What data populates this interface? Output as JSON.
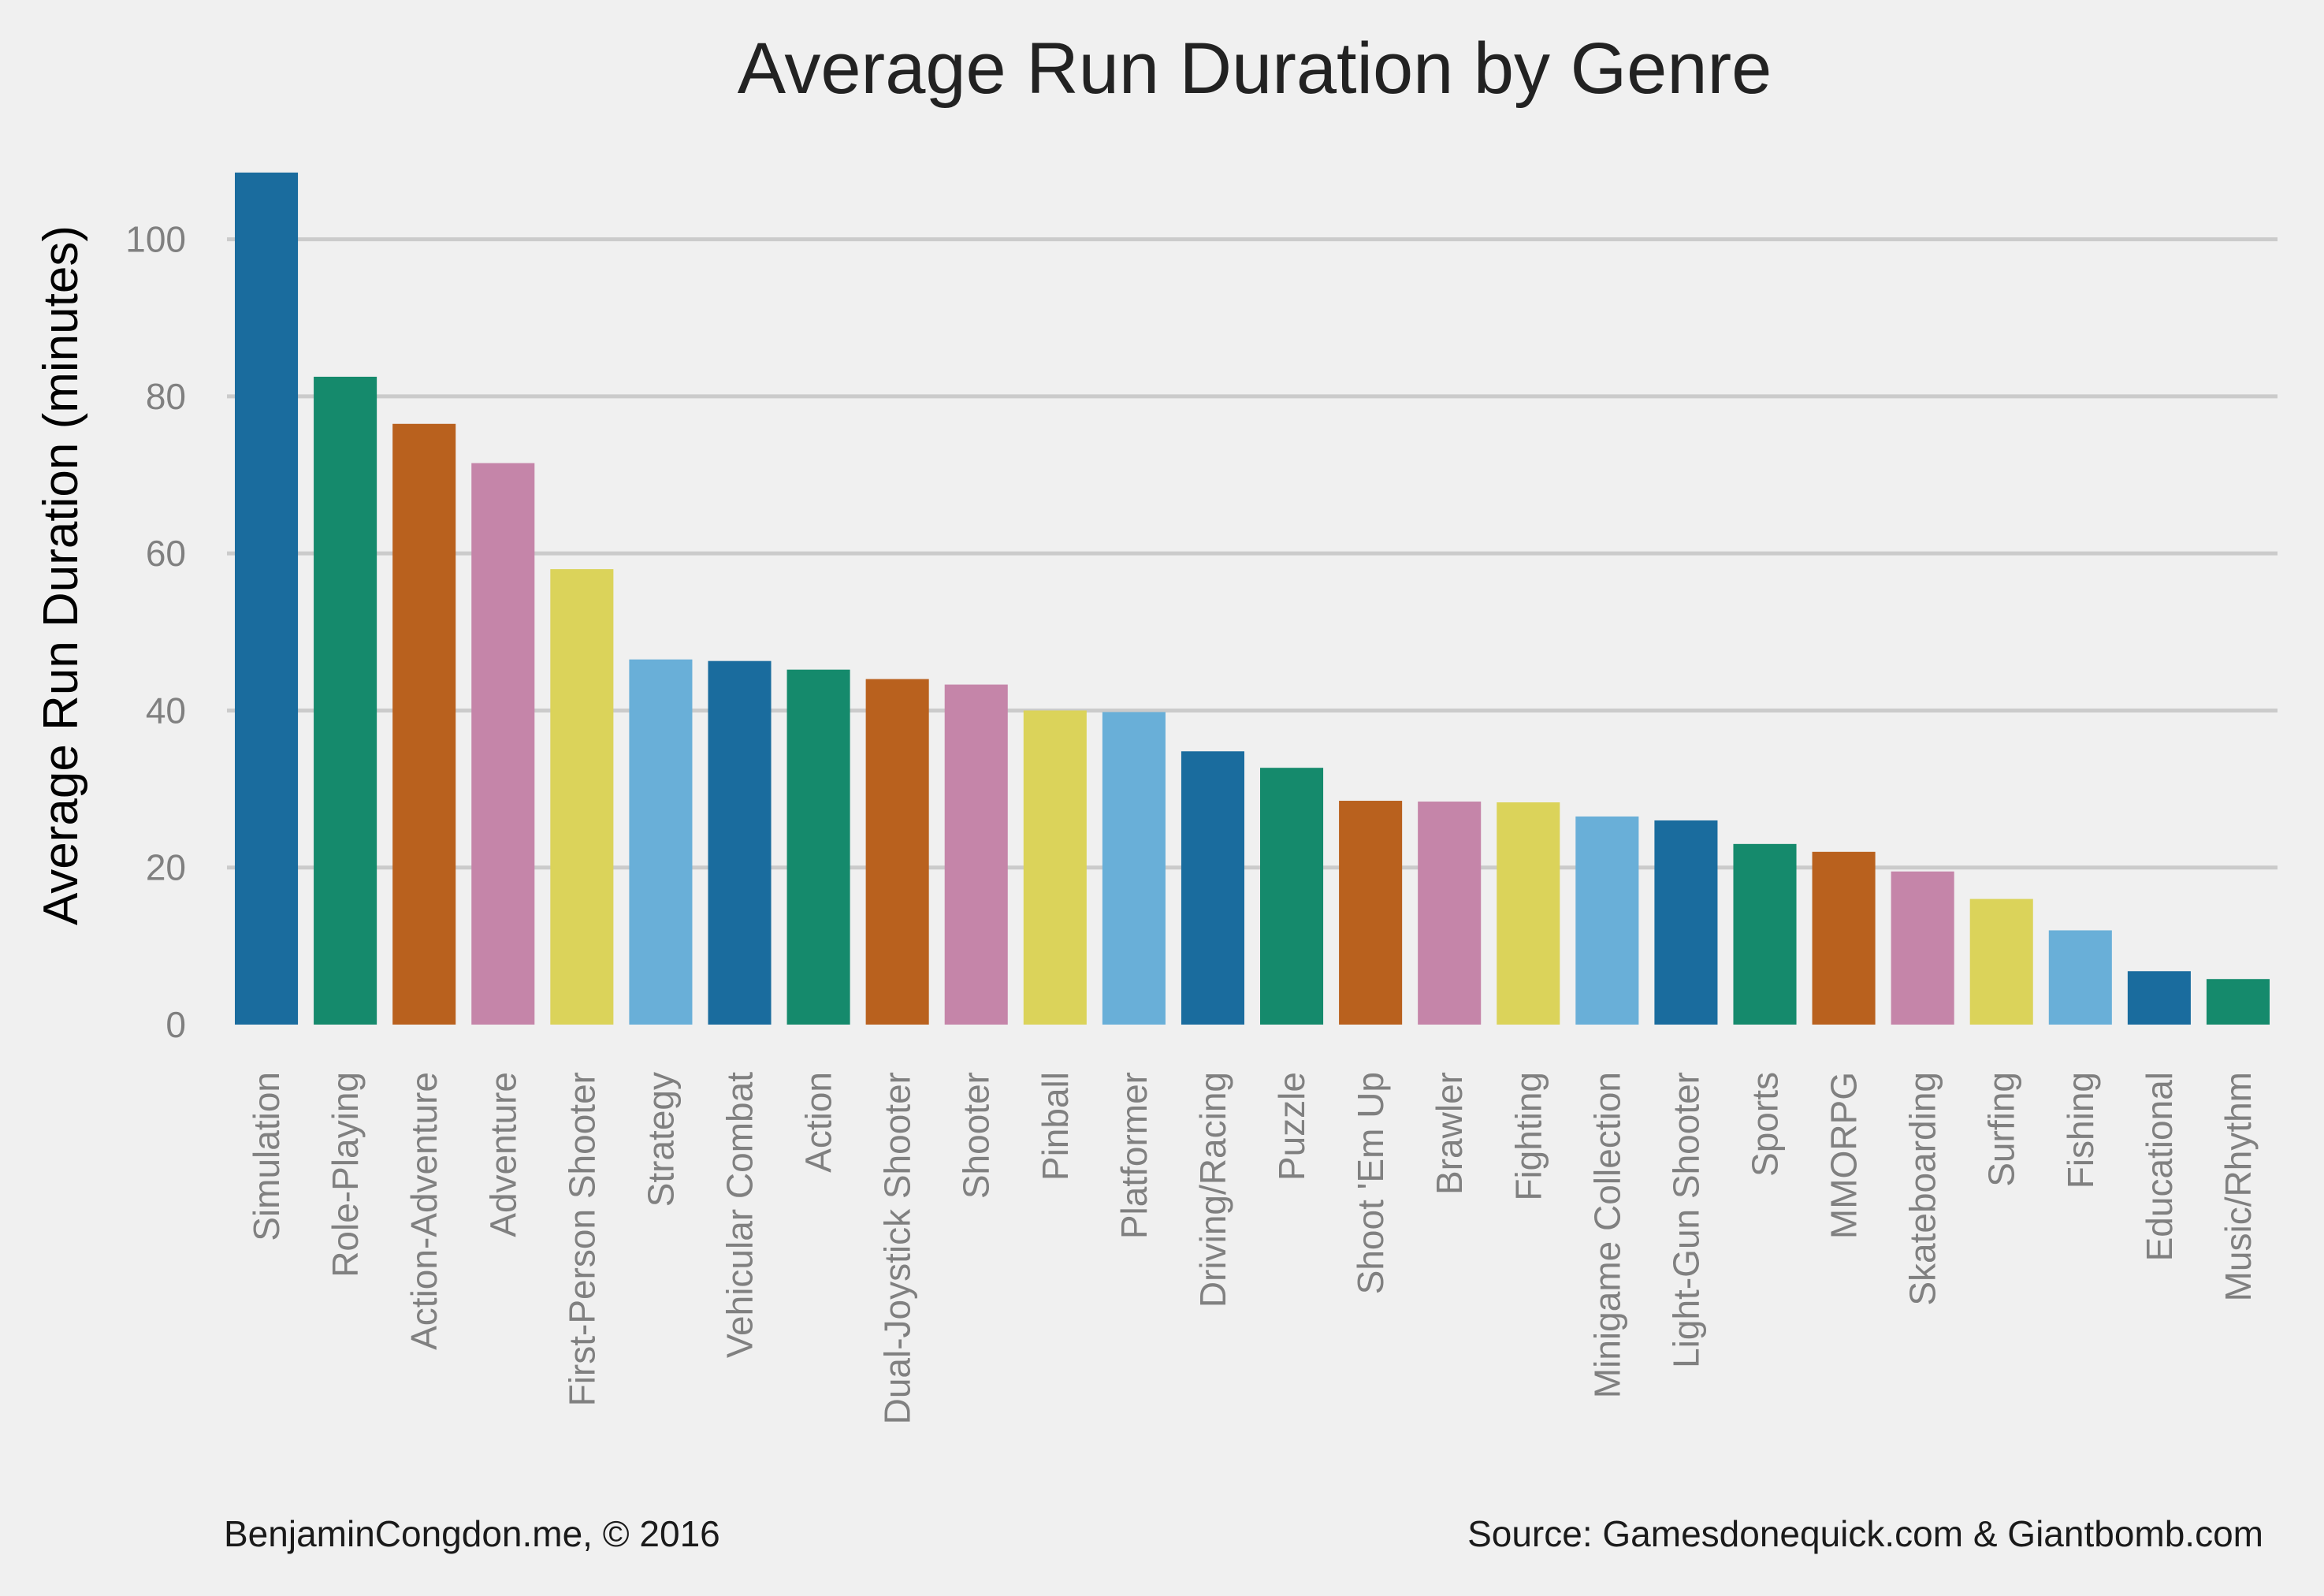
{
  "chart_data": {
    "type": "bar",
    "title": "Average Run Duration by Genre",
    "xlabel": "",
    "ylabel": "Average Run Duration (minutes)",
    "ylim": [
      0,
      110
    ],
    "yticks": [
      0,
      20,
      40,
      60,
      80,
      100
    ],
    "grid": true,
    "categories": [
      "Simulation",
      "Role-Playing",
      "Action-Adventure",
      "Adventure",
      "First-Person Shooter",
      "Strategy",
      "Vehicular Combat",
      "Action",
      "Dual-Joystick Shooter",
      "Shooter",
      "Pinball",
      "Platformer",
      "Driving/Racing",
      "Puzzle",
      "Shoot 'Em Up",
      "Brawler",
      "Fighting",
      "Minigame Collection",
      "Light-Gun Shooter",
      "Sports",
      "MMORPG",
      "Skateboarding",
      "Surfing",
      "Fishing",
      "Educational",
      "Music/Rhythm"
    ],
    "values": [
      108.5,
      82.5,
      76.5,
      71.5,
      58,
      46.5,
      46.3,
      45.2,
      44,
      43.3,
      40,
      39.8,
      34.8,
      32.7,
      28.5,
      28.4,
      28.3,
      26.5,
      26,
      23,
      22,
      19.5,
      16,
      12,
      6.8,
      5.8
    ],
    "colors": [
      "#1a6c9e",
      "#158a6c",
      "#b9611e",
      "#c585a9",
      "#dbd35a",
      "#69afd8"
    ]
  },
  "footer": {
    "credit": "BenjaminCongdon.me, © 2016",
    "source": "Source: Gamesdonequick.com & Giantbomb.com"
  }
}
